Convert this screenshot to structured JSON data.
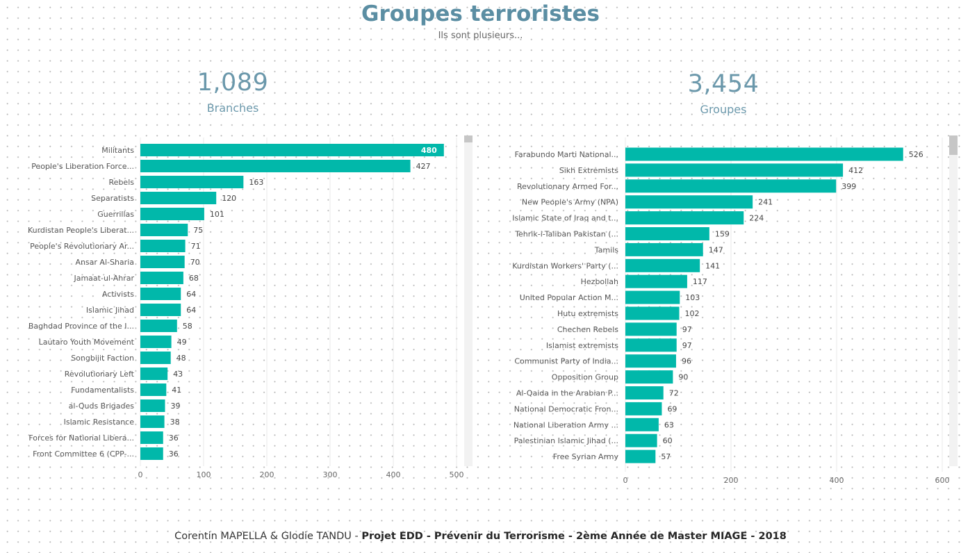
{
  "header": {
    "title": "Groupes terroristes",
    "subtitle": "Ils sont plusieurs..."
  },
  "kpis": [
    {
      "value": "1,089",
      "label": "Branches"
    },
    {
      "value": "3,454",
      "label": "Groupes"
    }
  ],
  "colors": {
    "bar": "#01b8aa",
    "kpi": "#6b98ab",
    "title": "#5b8ea3"
  },
  "footer": {
    "authors": "Corentin MAPELLA & Glodie TANDU - ",
    "project": "Projet EDD - Prévenir du Terrorisme - 2ème Année de Master MIAGE - 2018"
  },
  "chart_data": [
    {
      "type": "bar",
      "orientation": "horizontal",
      "categories": [
        "Militants",
        "People's Liberation Force...",
        "Rebels",
        "Separatists",
        "Guerrillas",
        "Kurdistan People's Liberat...",
        "People's Revolutionary Ar...",
        "Ansar Al-Sharia",
        "Jamaat-ul-Ahrar",
        "Activists",
        "Islamic Jihad",
        "Baghdad Province of the I...",
        "Lautaro Youth Movement",
        "Songbijit Faction",
        "Revolutionary Left",
        "Fundamentalists",
        "al-Quds Brigades",
        "Islamic Resistance",
        "Forces for National Libera...",
        "Front Committee 6 (CPP-..."
      ],
      "values": [
        480,
        427,
        163,
        120,
        101,
        75,
        71,
        70,
        68,
        64,
        64,
        58,
        49,
        48,
        43,
        41,
        39,
        38,
        36,
        36
      ],
      "xlim": [
        0,
        500
      ],
      "xticks": [
        0,
        100,
        200,
        300,
        400,
        500
      ],
      "grid": true
    },
    {
      "type": "bar",
      "orientation": "horizontal",
      "categories": [
        "Farabundo Marti National...",
        "Sikh Extremists",
        "Revolutionary Armed For...",
        "New People's Army (NPA)",
        "Islamic State of Iraq and t...",
        "Tehrik-i-Taliban Pakistan (...",
        "Tamils",
        "Kurdistan Workers' Party (...",
        "Hezbollah",
        "United Popular Action M...",
        "Hutu extremists",
        "Chechen Rebels",
        "Islamist extremists",
        "Communist Party of India...",
        "Opposition Group",
        "Al-Qaida in the Arabian P...",
        "National Democratic Fron...",
        "National Liberation Army ...",
        "Palestinian Islamic Jihad (...",
        "Free Syrian Army"
      ],
      "values": [
        526,
        412,
        399,
        241,
        224,
        159,
        147,
        141,
        117,
        103,
        102,
        97,
        97,
        96,
        90,
        72,
        69,
        63,
        60,
        57
      ],
      "xlim": [
        0,
        600
      ],
      "xticks": [
        0,
        200,
        400,
        600
      ],
      "grid": true
    }
  ]
}
